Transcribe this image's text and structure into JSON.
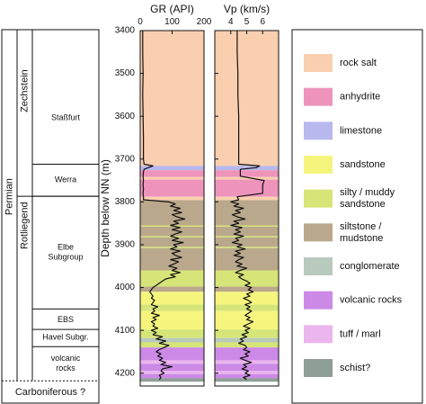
{
  "chart_data": {
    "type": "area",
    "ylabel": "Depth below NN (m)",
    "ylim": [
      3400,
      4230
    ],
    "y_ticks": [
      3400,
      3500,
      3600,
      3700,
      3800,
      3900,
      4000,
      4100,
      4200
    ],
    "stratigraphy": {
      "systems": [
        {
          "label": "Permian",
          "top": 3400,
          "base": 4218
        },
        {
          "label": "Carboniferous ?",
          "top": 4218,
          "base": 4250
        }
      ],
      "groups": [
        {
          "label": "Zechstein",
          "top": 3400,
          "base": 3787
        },
        {
          "label": "Rotliegend",
          "top": 3787,
          "base": 4218
        }
      ],
      "formations": [
        {
          "label": "Staßfurt",
          "top": 3400,
          "base": 3712
        },
        {
          "label": "Werra",
          "top": 3712,
          "base": 3787
        },
        {
          "label": "Elbe\nSubgroup",
          "top": 3787,
          "base": 4050
        },
        {
          "label": "EBS",
          "top": 4050,
          "base": 4098
        },
        {
          "label": "Havel Subgr.",
          "top": 4098,
          "base": 4138
        },
        {
          "label": "volcanic\nrocks",
          "top": 4138,
          "base": 4218
        }
      ]
    },
    "lithology_legend": [
      {
        "label": "rock salt",
        "color": "#f9cfb0"
      },
      {
        "label": "anhydrite",
        "color": "#ee94bb"
      },
      {
        "label": "limestone",
        "color": "#b8b8ee"
      },
      {
        "label": "sandstone",
        "color": "#f5f57e"
      },
      {
        "label": "silty / muddy\nsandstone",
        "color": "#d6e577"
      },
      {
        "label": "siltstone /\nmudstone",
        "color": "#b9a88b"
      },
      {
        "label": "conglomerate",
        "color": "#b8c9bd"
      },
      {
        "label": "volcanic rocks",
        "color": "#cc8ae6"
      },
      {
        "label": "tuff / marl",
        "color": "#ebb6ee"
      },
      {
        "label": "schist?",
        "color": "#8e9f97"
      }
    ],
    "lithology_column": [
      {
        "top": 3400,
        "base": 3716,
        "lith": "rock salt"
      },
      {
        "top": 3716,
        "base": 3726,
        "lith": "limestone"
      },
      {
        "top": 3726,
        "base": 3742,
        "lith": "anhydrite"
      },
      {
        "top": 3742,
        "base": 3748,
        "lith": "rock salt"
      },
      {
        "top": 3748,
        "base": 3788,
        "lith": "anhydrite"
      },
      {
        "top": 3788,
        "base": 3796,
        "lith": "rock salt"
      },
      {
        "top": 3796,
        "base": 3855,
        "lith": "siltstone /\nmudstone"
      },
      {
        "top": 3855,
        "base": 3858,
        "lith": "silty / muddy\nsandstone"
      },
      {
        "top": 3858,
        "base": 3880,
        "lith": "siltstone /\nmudstone"
      },
      {
        "top": 3880,
        "base": 3883,
        "lith": "silty / muddy\nsandstone"
      },
      {
        "top": 3883,
        "base": 3905,
        "lith": "siltstone /\nmudstone"
      },
      {
        "top": 3905,
        "base": 3908,
        "lith": "silty / muddy\nsandstone"
      },
      {
        "top": 3908,
        "base": 3960,
        "lith": "siltstone /\nmudstone"
      },
      {
        "top": 3960,
        "base": 3998,
        "lith": "silty / muddy\nsandstone"
      },
      {
        "top": 3998,
        "base": 4010,
        "lith": "siltstone /\nmudstone"
      },
      {
        "top": 4010,
        "base": 4040,
        "lith": "sandstone"
      },
      {
        "top": 4040,
        "base": 4055,
        "lith": "silty / muddy\nsandstone"
      },
      {
        "top": 4055,
        "base": 4098,
        "lith": "sandstone"
      },
      {
        "top": 4098,
        "base": 4118,
        "lith": "silty / muddy\nsandstone"
      },
      {
        "top": 4118,
        "base": 4128,
        "lith": "conglomerate"
      },
      {
        "top": 4128,
        "base": 4140,
        "lith": "silty / muddy\nsandstone"
      },
      {
        "top": 4140,
        "base": 4170,
        "lith": "volcanic rocks"
      },
      {
        "top": 4170,
        "base": 4178,
        "lith": "tuff / marl"
      },
      {
        "top": 4178,
        "base": 4195,
        "lith": "volcanic rocks"
      },
      {
        "top": 4195,
        "base": 4202,
        "lith": "tuff / marl"
      },
      {
        "top": 4202,
        "base": 4212,
        "lith": "volcanic rocks"
      },
      {
        "top": 4212,
        "base": 4220,
        "lith": "schist?"
      }
    ],
    "tracks": [
      {
        "name": "GR (API)",
        "xlim": [
          0,
          200
        ],
        "x_ticks": [
          0,
          100,
          200
        ],
        "series": {
          "depth": [
            3400,
            3450,
            3500,
            3550,
            3600,
            3650,
            3700,
            3712,
            3716,
            3720,
            3724,
            3730,
            3740,
            3750,
            3760,
            3770,
            3780,
            3788,
            3795,
            3800,
            3805,
            3810,
            3815,
            3820,
            3825,
            3830,
            3835,
            3840,
            3845,
            3850,
            3855,
            3860,
            3865,
            3870,
            3875,
            3880,
            3885,
            3890,
            3895,
            3900,
            3905,
            3910,
            3915,
            3920,
            3925,
            3930,
            3935,
            3940,
            3945,
            3950,
            3955,
            3960,
            3965,
            3970,
            3975,
            3980,
            3985,
            3990,
            3995,
            4000,
            4005,
            4010,
            4015,
            4020,
            4025,
            4030,
            4035,
            4040,
            4045,
            4050,
            4055,
            4060,
            4065,
            4070,
            4075,
            4080,
            4085,
            4090,
            4095,
            4100,
            4105,
            4110,
            4115,
            4120,
            4125,
            4130,
            4135,
            4140,
            4145,
            4150,
            4155,
            4160,
            4165,
            4170,
            4175,
            4180,
            4185,
            4190,
            4195,
            4200,
            4205,
            4210,
            4215
          ],
          "values": [
            8,
            8,
            9,
            8,
            9,
            10,
            10,
            12,
            40,
            25,
            12,
            10,
            9,
            10,
            9,
            10,
            9,
            10,
            10,
            90,
            110,
            95,
            125,
            105,
            130,
            100,
            115,
            140,
            105,
            120,
            95,
            125,
            100,
            130,
            110,
            95,
            120,
            100,
            135,
            105,
            115,
            95,
            125,
            100,
            110,
            130,
            95,
            120,
            105,
            90,
            115,
            100,
            125,
            95,
            110,
            80,
            70,
            60,
            50,
            40,
            35,
            30,
            35,
            40,
            35,
            45,
            40,
            35,
            55,
            40,
            45,
            35,
            60,
            40,
            50,
            35,
            45,
            40,
            55,
            35,
            50,
            40,
            70,
            50,
            80,
            60,
            90,
            75,
            60,
            50,
            65,
            55,
            70,
            60,
            80,
            65,
            100,
            70,
            65,
            75,
            60,
            65,
            60
          ]
        }
      },
      {
        "name": "Vp (km/s)",
        "xlim": [
          3,
          7
        ],
        "x_ticks": [
          4,
          5,
          6
        ],
        "series": {
          "depth": [
            3400,
            3450,
            3500,
            3550,
            3600,
            3650,
            3700,
            3712,
            3716,
            3720,
            3724,
            3730,
            3740,
            3750,
            3760,
            3770,
            3780,
            3788,
            3795,
            3800,
            3805,
            3810,
            3815,
            3820,
            3825,
            3830,
            3835,
            3840,
            3845,
            3850,
            3855,
            3860,
            3865,
            3870,
            3875,
            3880,
            3885,
            3890,
            3895,
            3900,
            3905,
            3910,
            3915,
            3920,
            3925,
            3930,
            3935,
            3940,
            3945,
            3950,
            3955,
            3960,
            3965,
            3970,
            3975,
            3980,
            3985,
            3990,
            3995,
            4000,
            4005,
            4010,
            4015,
            4020,
            4025,
            4030,
            4035,
            4040,
            4045,
            4050,
            4055,
            4060,
            4065,
            4070,
            4075,
            4080,
            4085,
            4090,
            4095,
            4100,
            4105,
            4110,
            4115,
            4120,
            4125,
            4130,
            4135,
            4140,
            4145,
            4150,
            4155,
            4160,
            4165,
            4170,
            4175,
            4180,
            4185,
            4190,
            4195,
            4200,
            4205,
            4210,
            4215
          ],
          "values": [
            4.4,
            4.4,
            4.45,
            4.45,
            4.5,
            4.5,
            4.5,
            4.5,
            5.8,
            5.6,
            4.6,
            4.6,
            4.6,
            6.1,
            6.0,
            6.0,
            6.0,
            4.4,
            4.5,
            4.0,
            4.5,
            4.2,
            4.8,
            4.3,
            4.6,
            4.1,
            4.4,
            4.9,
            4.2,
            4.5,
            4.0,
            4.7,
            4.3,
            4.6,
            4.2,
            4.8,
            4.3,
            4.5,
            4.1,
            4.7,
            4.4,
            4.9,
            4.3,
            4.6,
            4.2,
            4.8,
            4.5,
            4.3,
            4.7,
            4.4,
            5.0,
            4.6,
            4.3,
            4.8,
            4.5,
            4.7,
            5.0,
            5.2,
            4.9,
            5.3,
            5.1,
            5.4,
            5.0,
            5.2,
            4.8,
            5.1,
            5.3,
            4.9,
            5.2,
            5.0,
            5.3,
            5.1,
            4.9,
            5.2,
            5.0,
            5.4,
            5.1,
            4.8,
            5.2,
            4.9,
            5.1,
            4.7,
            5.0,
            4.6,
            4.8,
            4.5,
            4.9,
            5.0,
            4.8,
            5.2,
            4.9,
            5.1,
            4.6,
            4.9,
            5.3,
            4.8,
            5.0,
            4.7,
            5.1,
            4.9,
            5.2,
            4.8,
            5.0
          ]
        }
      }
    ]
  }
}
